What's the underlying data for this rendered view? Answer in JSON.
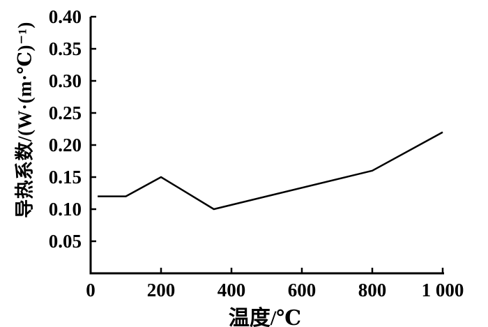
{
  "chart_data": {
    "type": "line",
    "title": "",
    "xlabel": "温度/℃",
    "ylabel": "导热系数/(W·(m·℃)⁻¹)",
    "series": [
      {
        "name": "导热系数",
        "x": [
          20,
          100,
          200,
          350,
          800,
          1000
        ],
        "y": [
          0.12,
          0.12,
          0.15,
          0.1,
          0.16,
          0.22
        ]
      }
    ],
    "xlim": [
      0,
      1000
    ],
    "ylim": [
      0,
      0.4
    ],
    "x_ticks": [
      0,
      200,
      400,
      600,
      800,
      1000
    ],
    "x_tick_labels": [
      "0",
      "200",
      "400",
      "600",
      "800",
      "1 000"
    ],
    "y_ticks": [
      0.05,
      0.1,
      0.15,
      0.2,
      0.25,
      0.3,
      0.35,
      0.4
    ],
    "y_tick_labels": [
      "0.05",
      "0.10",
      "0.15",
      "0.20",
      "0.25",
      "0.30",
      "0.35",
      "0.40"
    ],
    "grid": false,
    "legend": "none",
    "line_color": "#000000",
    "axis_color": "#000000",
    "background": "#ffffff"
  }
}
